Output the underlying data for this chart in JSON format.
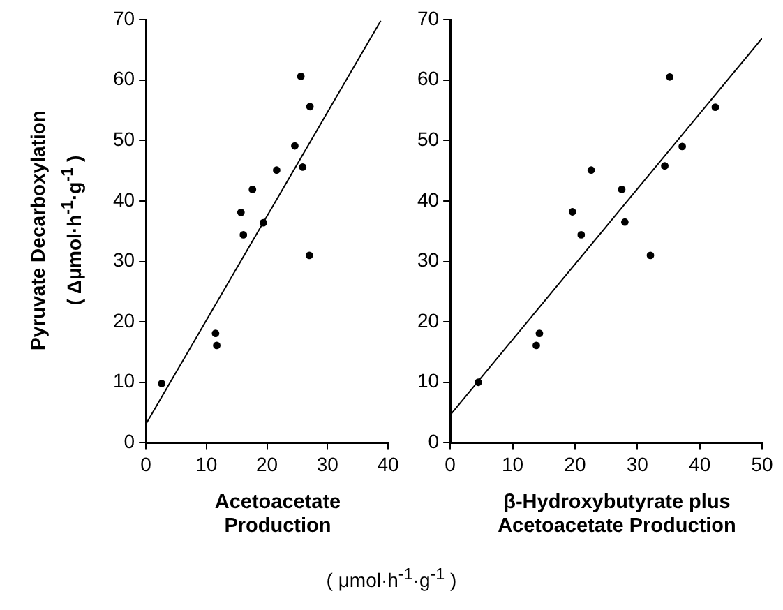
{
  "chart_data": [
    {
      "type": "scatter",
      "ylabel": "Pyruvate Decarboxylation",
      "xlabel": "Acetoacetate Production",
      "annotations": [
        "( Δμmol·h$^{-1}$·g$^{-1}$ )"
      ],
      "xlim": [
        0,
        40
      ],
      "xticks": [
        0,
        10,
        20,
        30,
        40
      ],
      "ylim": [
        0,
        70
      ],
      "yticks": [
        0,
        10,
        20,
        30,
        40,
        50,
        60,
        70
      ],
      "grid": false,
      "legend": false,
      "series": [
        {
          "type": "scatter",
          "marker": "circle",
          "color": "#000000",
          "x": [
            2.6,
            11.5,
            11.7,
            15.7,
            16.1,
            17.6,
            19.4,
            21.6,
            24.6,
            25.6,
            25.9,
            27.1,
            27.0
          ],
          "values": [
            9.8,
            18.1,
            16.1,
            38.1,
            34.4,
            41.9,
            36.4,
            45.1,
            49.1,
            60.6,
            45.6,
            55.6,
            31.0
          ]
        },
        {
          "type": "line",
          "color": "#000000",
          "line_style": "solid",
          "x": [
            0,
            38.8
          ],
          "values": [
            3.1,
            69.8
          ]
        }
      ]
    },
    {
      "type": "scatter",
      "xlabel": "β-Hydroxybutyrate plus Acetoacetate Production",
      "annotations": [
        "( μmol·h$^{-1}$·g$^{-1}$ )"
      ],
      "xlim": [
        0,
        50
      ],
      "xticks": [
        0,
        10,
        20,
        30,
        40,
        50
      ],
      "ylim": [
        0,
        70
      ],
      "yticks": [
        0,
        10,
        20,
        30,
        40,
        50,
        60,
        70
      ],
      "grid": false,
      "legend": false,
      "series": [
        {
          "type": "scatter",
          "marker": "circle",
          "color": "#000000",
          "x": [
            4.5,
            14.3,
            13.8,
            19.6,
            21.0,
            22.6,
            27.5,
            28.0,
            32.1,
            34.4,
            35.2,
            37.2,
            42.5
          ],
          "values": [
            10.0,
            18.1,
            16.1,
            38.2,
            34.4,
            45.1,
            41.9,
            36.5,
            31.0,
            45.8,
            60.5,
            49.0,
            55.5
          ]
        },
        {
          "type": "line",
          "color": "#000000",
          "line_style": "solid",
          "x": [
            0,
            50
          ],
          "values": [
            4.6,
            66.9
          ]
        }
      ]
    }
  ]
}
